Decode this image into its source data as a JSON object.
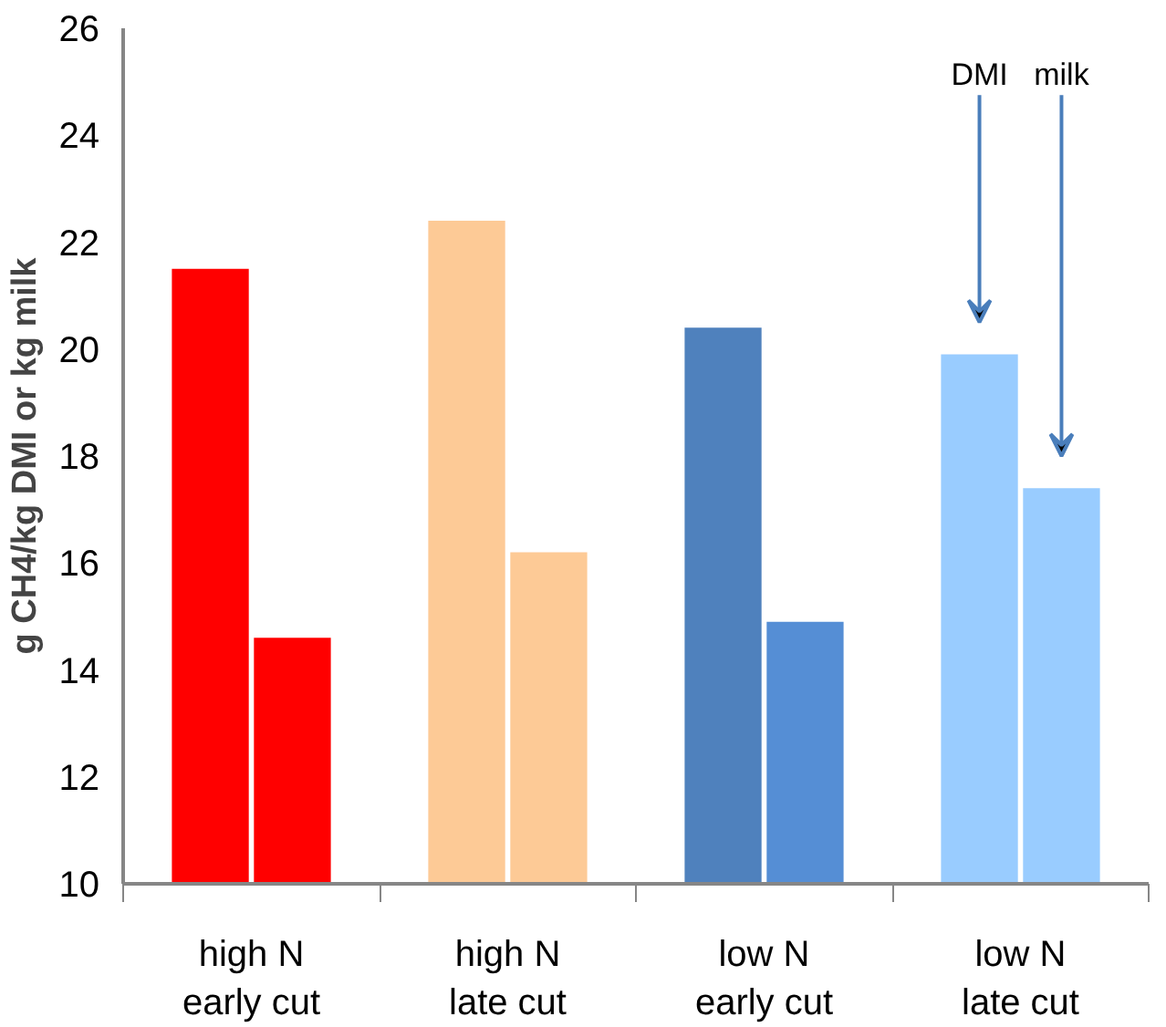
{
  "chart_data": {
    "type": "bar",
    "ylabel": "g CH4/kg DMI or kg milk",
    "categories": [
      "high N\nearly cut",
      "high N\nlate cut",
      "low N\nearly cut",
      "low N\nlate cut"
    ],
    "series": [
      {
        "name": "DMI",
        "colors": [
          "#ff0000",
          "#fdca96",
          "#4f81bd",
          "#99ccff"
        ],
        "values": [
          21.5,
          22.4,
          20.4,
          19.9
        ]
      },
      {
        "name": "milk",
        "colors": [
          "#ff0000",
          "#fdca96",
          "#558ed5",
          "#99ccff"
        ],
        "values": [
          14.6,
          16.2,
          14.9,
          17.4
        ]
      }
    ],
    "ylim": [
      10,
      26
    ],
    "yticks": [
      10,
      12,
      14,
      16,
      18,
      20,
      22,
      24,
      26
    ],
    "grid": false
  }
}
